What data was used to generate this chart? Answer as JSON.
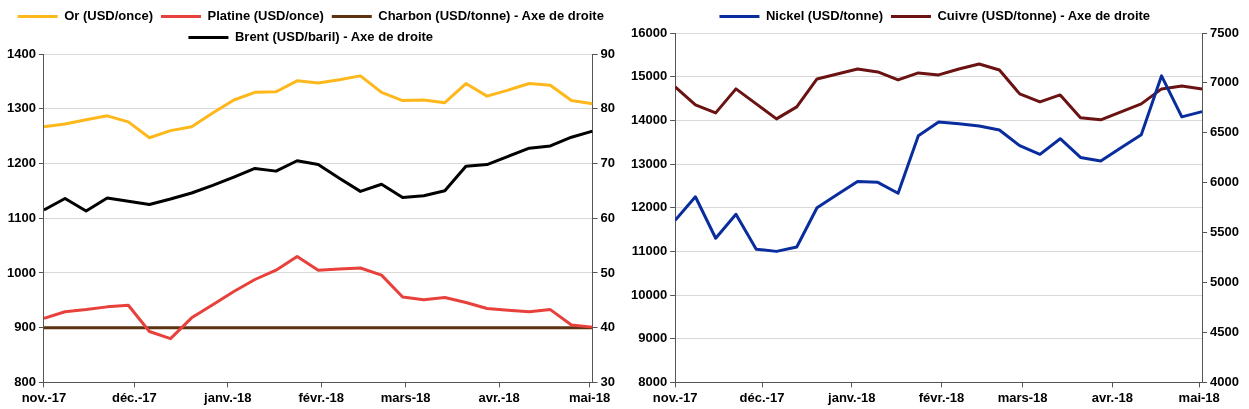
{
  "chart_data": [
    {
      "type": "line",
      "x": [
        "2017-11-01",
        "2017-11-08",
        "2017-11-15",
        "2017-11-22",
        "2017-11-29",
        "2017-12-06",
        "2017-12-13",
        "2017-12-20",
        "2017-12-27",
        "2018-01-03",
        "2018-01-10",
        "2018-01-17",
        "2018-01-24",
        "2018-01-31",
        "2018-02-07",
        "2018-02-14",
        "2018-02-21",
        "2018-02-28",
        "2018-03-07",
        "2018-03-14",
        "2018-03-21",
        "2018-03-28",
        "2018-04-04",
        "2018-04-11",
        "2018-04-18",
        "2018-04-25",
        "2018-05-02"
      ],
      "series": [
        {
          "name": "Or (USD/once)",
          "color": "#ffb81c",
          "values": [
            1267,
            1272,
            1280,
            1287,
            1276,
            1247,
            1260,
            1267,
            1292,
            1316,
            1330,
            1331,
            1351,
            1347,
            1353,
            1360,
            1330,
            1315,
            1316,
            1311,
            1346,
            1323,
            1334,
            1346,
            1343,
            1315,
            1309
          ]
        },
        {
          "name": "Platine (USD/once)",
          "color": "#e8413c",
          "values": [
            917,
            929,
            933,
            938,
            941,
            893,
            880,
            918,
            942,
            966,
            988,
            1005,
            1030,
            1005,
            1007,
            1009,
            996,
            956,
            951,
            955,
            946,
            935,
            932,
            929,
            933,
            905,
            901
          ]
        },
        {
          "name": "Charbon (USD/tonne) - Axe de droite",
          "color": "#5c3310",
          "axis": "y2",
          "values": [
            40,
            40,
            40,
            40,
            40,
            40,
            40,
            40,
            40,
            40,
            40,
            40,
            40,
            40,
            40,
            40,
            40,
            40,
            40,
            40,
            40,
            40,
            40,
            40,
            40,
            40,
            40
          ]
        },
        {
          "name": "Brent (USD/baril) - Axe de droite",
          "color": "#000000",
          "axis": "y2",
          "values": [
            61.5,
            63.6,
            61.3,
            63.7,
            63.1,
            62.5,
            63.5,
            64.6,
            66.0,
            67.5,
            69.1,
            68.6,
            70.5,
            69.8,
            67.3,
            64.9,
            66.2,
            63.8,
            64.1,
            65.0,
            69.5,
            69.8,
            71.3,
            72.8,
            73.2,
            74.8,
            75.9
          ]
        }
      ],
      "xlim": [
        "2017-11-01",
        "2018-05-02"
      ],
      "xticks": [
        {
          "value": "2017-11-01",
          "label": "nov.-17"
        },
        {
          "value": "2017-12-01",
          "label": "déc.-17"
        },
        {
          "value": "2018-01-01",
          "label": "janv.-18"
        },
        {
          "value": "2018-02-01",
          "label": "févr.-18"
        },
        {
          "value": "2018-03-01",
          "label": "mars-18"
        },
        {
          "value": "2018-04-01",
          "label": "avr.-18"
        },
        {
          "value": "2018-05-01",
          "label": "mai-18"
        }
      ],
      "ylim": [
        800,
        1400
      ],
      "yticks": [
        800,
        900,
        1000,
        1100,
        1200,
        1300,
        1400
      ],
      "y2lim": [
        30,
        90
      ],
      "y2ticks": [
        30,
        40,
        50,
        60,
        70,
        80,
        90
      ],
      "grid": "y",
      "legend": "top",
      "marker": "none",
      "line_style": "solid"
    },
    {
      "type": "line",
      "x": [
        "2017-11-01",
        "2017-11-08",
        "2017-11-15",
        "2017-11-22",
        "2017-11-29",
        "2017-12-06",
        "2017-12-13",
        "2017-12-20",
        "2017-12-27",
        "2018-01-03",
        "2018-01-10",
        "2018-01-17",
        "2018-01-24",
        "2018-01-31",
        "2018-02-07",
        "2018-02-14",
        "2018-02-21",
        "2018-02-28",
        "2018-03-07",
        "2018-03-14",
        "2018-03-21",
        "2018-03-28",
        "2018-04-04",
        "2018-04-11",
        "2018-04-18",
        "2018-04-25",
        "2018-05-02"
      ],
      "series": [
        {
          "name": "Nickel (USD/tonne)",
          "color": "#0a2d9e",
          "values": [
            11710,
            12250,
            11300,
            11850,
            11050,
            11000,
            11100,
            12000,
            12300,
            12600,
            12580,
            12330,
            13650,
            13960,
            13920,
            13870,
            13780,
            13420,
            13220,
            13580,
            13150,
            13070,
            13370,
            13670,
            15020,
            14080,
            14200
          ]
        },
        {
          "name": "Cuivre (USD/tonne) - Axe de droite",
          "color": "#6b1212",
          "axis": "y2",
          "values": [
            6960,
            6780,
            6700,
            6940,
            6790,
            6640,
            6760,
            7040,
            7090,
            7140,
            7110,
            7030,
            7100,
            7080,
            7140,
            7190,
            7130,
            6890,
            6810,
            6880,
            6650,
            6630,
            6710,
            6790,
            6940,
            6970,
            6940
          ]
        }
      ],
      "xlim": [
        "2017-11-01",
        "2018-05-02"
      ],
      "xticks": [
        {
          "value": "2017-11-01",
          "label": "nov.-17"
        },
        {
          "value": "2017-12-01",
          "label": "déc.-17"
        },
        {
          "value": "2018-01-01",
          "label": "janv.-18"
        },
        {
          "value": "2018-02-01",
          "label": "févr.-18"
        },
        {
          "value": "2018-03-01",
          "label": "mars-18"
        },
        {
          "value": "2018-04-01",
          "label": "avr.-18"
        },
        {
          "value": "2018-05-01",
          "label": "mai-18"
        }
      ],
      "ylim": [
        8000,
        16000
      ],
      "yticks": [
        8000,
        9000,
        10000,
        11000,
        12000,
        13000,
        14000,
        15000,
        16000
      ],
      "y2lim": [
        4000,
        7500
      ],
      "y2ticks": [
        4000,
        4500,
        5000,
        5500,
        6000,
        6500,
        7000,
        7500
      ],
      "grid": "y",
      "legend": "top",
      "marker": "none",
      "line_style": "solid"
    }
  ]
}
